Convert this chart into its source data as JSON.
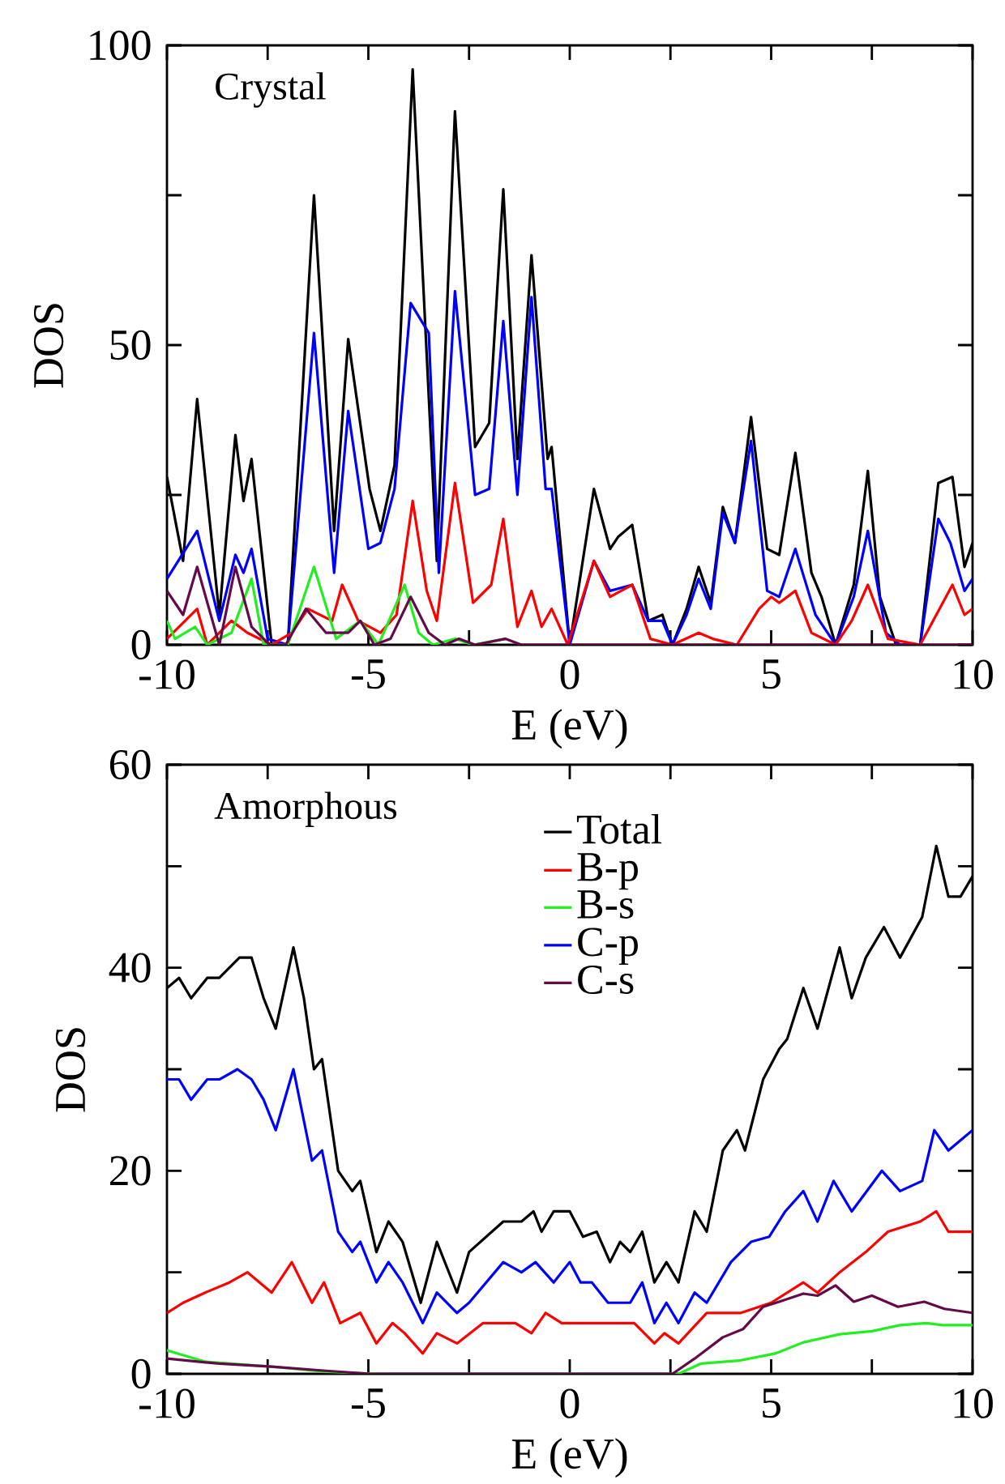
{
  "chart_data": [
    {
      "type": "line",
      "title": "Crystal",
      "xlabel": "E (eV)",
      "ylabel": "DOS",
      "xlim": [
        -10,
        10
      ],
      "ylim": [
        0,
        100
      ],
      "xticks": [
        -10,
        {
          "value": -7.5,
          "label": null
        },
        -5,
        {
          "value": -2.5,
          "label": null
        },
        0,
        {
          "value": 2.5,
          "label": null
        },
        5,
        {
          "value": 7.5,
          "label": null
        },
        10
      ],
      "yticks": [
        0,
        {
          "value": 25,
          "label": null
        },
        50,
        {
          "value": 75,
          "label": null
        },
        100
      ],
      "legend": false,
      "series": [
        {
          "color": "#000000",
          "x": [
            -10,
            -9.6,
            -9.25,
            -8.7,
            -8.3,
            -8.1,
            -7.9,
            -7.4,
            -7.0,
            -6.35,
            -5.85,
            -5.5,
            -4.97,
            -4.7,
            -4.35,
            -3.9,
            -3.3,
            -2.85,
            -2.35,
            -2.0,
            -1.65,
            -1.3,
            -0.95,
            -0.55,
            -0.45,
            0.0,
            0.6,
            1.0,
            1.2,
            1.55,
            1.95,
            2.3,
            2.55,
            2.9,
            3.2,
            3.5,
            3.8,
            4.1,
            4.5,
            4.9,
            5.2,
            5.6,
            6.0,
            6.25,
            6.6,
            7.05,
            7.4,
            7.7,
            8.1,
            8.7,
            9.15,
            9.5,
            9.8,
            10
          ],
          "values": [
            28,
            14,
            41,
            5,
            35,
            24,
            31,
            0,
            0,
            75,
            19,
            51,
            26,
            19,
            30,
            96,
            14,
            89,
            33,
            37,
            76,
            31,
            65,
            31,
            33,
            0,
            26,
            16,
            18,
            20,
            4,
            5,
            0,
            6,
            13,
            7,
            23,
            17,
            38,
            16,
            15,
            32,
            12,
            8,
            0,
            10,
            29,
            8,
            0,
            0,
            27,
            28,
            13,
            17
          ]
        },
        {
          "color": "#0000ff",
          "x": [
            -10,
            -9.25,
            -8.7,
            -8.3,
            -8.1,
            -7.9,
            -7.5,
            -7.0,
            -6.35,
            -5.85,
            -5.5,
            -5.0,
            -4.7,
            -4.35,
            -3.95,
            -3.5,
            -3.25,
            -2.85,
            -2.35,
            -2.0,
            -1.65,
            -1.3,
            -0.95,
            -0.6,
            -0.45,
            0.0,
            0.6,
            1.0,
            1.55,
            1.95,
            2.3,
            2.55,
            2.9,
            3.2,
            3.5,
            3.8,
            4.1,
            4.5,
            4.9,
            5.2,
            5.6,
            6.1,
            6.6,
            7.05,
            7.4,
            7.85,
            8.2,
            8.7,
            9.15,
            9.45,
            9.8,
            10
          ],
          "values": [
            11,
            19,
            4,
            15,
            12,
            16,
            1,
            0,
            52,
            12,
            39,
            16,
            17,
            26,
            57,
            52,
            12,
            59,
            25,
            26,
            54,
            25,
            58,
            26,
            26,
            0,
            14,
            9,
            10,
            4,
            4,
            0,
            5,
            11,
            6,
            22,
            17,
            34,
            9,
            8,
            16,
            5,
            0,
            8,
            19,
            2,
            0,
            0,
            21,
            17,
            9,
            11
          ]
        },
        {
          "color": "#ff0000",
          "x": [
            -10,
            -9.7,
            -9.25,
            -9.0,
            -8.4,
            -8.0,
            -7.4,
            -6.9,
            -6.5,
            -5.9,
            -5.65,
            -5.25,
            -4.7,
            -4.3,
            -3.9,
            -3.55,
            -3.3,
            -2.85,
            -2.4,
            -1.95,
            -1.65,
            -1.3,
            -0.95,
            -0.7,
            -0.45,
            -0.05,
            0.6,
            1.0,
            1.55,
            2.0,
            2.55,
            3.2,
            3.55,
            4.15,
            4.7,
            5.0,
            5.2,
            5.6,
            6.0,
            6.6,
            7.0,
            7.4,
            7.9,
            8.7,
            9.5,
            9.8,
            10
          ],
          "values": [
            1,
            3,
            6,
            0,
            4,
            2,
            0,
            2,
            6,
            4,
            10,
            4,
            2,
            5,
            24,
            9,
            4,
            27,
            7,
            10,
            21,
            3,
            9,
            3,
            6,
            0,
            14,
            8,
            10,
            1,
            0,
            2,
            1,
            0,
            6,
            8,
            7,
            9,
            2,
            0,
            4,
            10,
            1,
            0,
            10,
            5,
            6
          ]
        },
        {
          "color": "#22ee22",
          "x": [
            -10,
            -9.8,
            -9.3,
            -9.0,
            -8.4,
            -7.9,
            -7.6,
            -7.0,
            -6.35,
            -5.8,
            -5.2,
            -4.75,
            -4.1,
            -3.75,
            -3.4,
            -2.85,
            -2.4,
            -1.6
          ],
          "values": [
            4,
            1,
            3,
            0,
            2,
            11,
            0,
            0,
            13,
            1,
            4,
            0,
            10,
            2,
            0,
            1,
            0,
            1
          ]
        },
        {
          "color": "#640a46",
          "x": [
            -10,
            -9.6,
            -9.25,
            -8.7,
            -8.3,
            -7.9,
            -7.45,
            -7.05,
            -6.55,
            -6.05,
            -5.5,
            -5.2,
            -4.85,
            -4.45,
            -3.95,
            -3.5,
            -3.1,
            -2.75,
            -2.35,
            -1.6,
            -1.2,
            10
          ],
          "values": [
            9,
            5,
            13,
            0,
            13,
            3,
            0,
            0,
            6,
            2,
            2,
            4,
            0,
            1,
            8,
            2,
            0,
            1,
            0,
            1,
            0,
            0
          ]
        }
      ]
    },
    {
      "type": "line",
      "title": "Amorphous",
      "xlabel": "E (eV)",
      "ylabel": "DOS",
      "xlim": [
        -10,
        10
      ],
      "ylim": [
        0,
        60
      ],
      "xticks": [
        -10,
        {
          "value": -7.5,
          "label": null
        },
        -5,
        {
          "value": -2.5,
          "label": null
        },
        0,
        {
          "value": 2.5,
          "label": null
        },
        5,
        {
          "value": 7.5,
          "label": null
        },
        10
      ],
      "yticks": [
        0,
        {
          "value": 10,
          "label": null
        },
        20,
        {
          "value": 30,
          "label": null
        },
        40,
        {
          "value": 50,
          "label": null
        },
        60
      ],
      "legend": "top right",
      "series": [
        {
          "name": "Total",
          "color": "#000000",
          "x": [
            -10,
            -9.7,
            -9.4,
            -9.0,
            -8.7,
            -8.2,
            -7.9,
            -7.6,
            -7.3,
            -6.86,
            -6.6,
            -6.35,
            -6.15,
            -5.75,
            -5.4,
            -5.2,
            -4.8,
            -4.5,
            -4.15,
            -3.7,
            -3.3,
            -2.8,
            -2.5,
            -1.65,
            -1.2,
            -0.9,
            -0.7,
            -0.4,
            0.0,
            0.33,
            0.67,
            1.0,
            1.25,
            1.5,
            1.8,
            2.1,
            2.4,
            2.7,
            3.1,
            3.4,
            3.8,
            4.15,
            4.35,
            4.8,
            5.2,
            5.4,
            5.8,
            6.15,
            6.7,
            7.0,
            7.35,
            7.8,
            8.2,
            8.75,
            9.1,
            9.4,
            9.7,
            10
          ],
          "values": [
            38,
            39,
            37,
            39,
            39,
            41,
            41,
            37,
            34,
            42,
            37,
            30,
            31,
            20,
            18,
            19,
            12,
            15,
            13,
            7,
            13,
            8,
            12,
            15,
            15,
            16,
            14,
            16,
            16,
            13.5,
            14,
            11,
            13,
            12,
            14,
            9,
            11,
            9,
            16,
            14,
            22,
            24,
            22,
            29,
            32,
            33,
            38,
            34,
            42,
            37,
            41,
            44,
            41,
            45,
            52,
            47,
            47,
            49
          ]
        },
        {
          "name": "B-p",
          "color": "#ff0000",
          "x": [
            -10,
            -9.6,
            -9.05,
            -8.45,
            -8.0,
            -7.4,
            -6.9,
            -6.4,
            -6.1,
            -5.7,
            -5.2,
            -4.8,
            -4.4,
            -4.1,
            -3.65,
            -3.3,
            -2.8,
            -2.15,
            -1.75,
            -1.35,
            -0.95,
            -0.6,
            -0.2,
            0.27,
            0.67,
            1.2,
            1.6,
            2.1,
            2.35,
            2.7,
            3.4,
            4.25,
            5.0,
            5.8,
            6.15,
            6.7,
            7.35,
            7.9,
            8.7,
            9.1,
            9.4,
            10
          ],
          "values": [
            6,
            7,
            8,
            9,
            10,
            8,
            11,
            7,
            9,
            5,
            6,
            3,
            5,
            4,
            2,
            4,
            3,
            5,
            5,
            5,
            4,
            6,
            5,
            5,
            5,
            5,
            5,
            3,
            4,
            3,
            6,
            6,
            7,
            9,
            8,
            10,
            12,
            14,
            15,
            16,
            14,
            14
          ]
        },
        {
          "name": "B-s",
          "color": "#22ee22",
          "x": [
            -10,
            -9.05,
            -7.4,
            -6.05,
            -4.7,
            2.7,
            3.25,
            4.2,
            5.1,
            5.8,
            6.7,
            7.5,
            8.2,
            8.85,
            9.25,
            10
          ],
          "values": [
            2.3,
            1.2,
            0.7,
            0.2,
            0,
            0,
            1,
            1.3,
            2,
            3.1,
            3.9,
            4.2,
            4.8,
            5,
            4.8,
            4.8
          ]
        },
        {
          "name": "C-p",
          "color": "#0000ff",
          "x": [
            -10,
            -9.7,
            -9.4,
            -9.0,
            -8.7,
            -8.25,
            -7.9,
            -7.6,
            -7.3,
            -6.86,
            -6.4,
            -6.15,
            -5.75,
            -5.4,
            -5.2,
            -4.8,
            -4.5,
            -4.15,
            -3.65,
            -3.3,
            -2.8,
            -2.5,
            -1.65,
            -1.2,
            -0.85,
            -0.4,
            0.0,
            0.27,
            0.55,
            0.95,
            1.5,
            1.8,
            2.1,
            2.4,
            2.7,
            3.1,
            3.4,
            4.0,
            4.5,
            4.95,
            5.35,
            5.8,
            6.15,
            6.55,
            7.0,
            7.75,
            8.2,
            8.75,
            9.05,
            9.4,
            10
          ],
          "values": [
            29,
            29,
            27,
            29,
            29,
            30,
            29,
            27,
            24,
            30,
            21,
            22,
            14,
            12,
            13,
            9,
            11,
            9,
            5,
            8,
            6,
            7,
            11,
            10,
            11,
            9,
            11,
            9,
            9,
            7,
            7,
            9,
            5,
            7,
            5,
            8,
            7,
            11,
            13,
            13.5,
            16,
            18,
            15,
            19,
            16,
            20,
            18,
            19,
            24,
            22,
            24
          ]
        },
        {
          "name": "C-s",
          "color": "#640a46",
          "x": [
            -10,
            -8.7,
            -7.4,
            -6.05,
            -4.95,
            2.55,
            3.1,
            3.8,
            4.3,
            4.8,
            5.2,
            5.8,
            6.15,
            6.6,
            7.05,
            7.5,
            8.15,
            8.8,
            9.3,
            10
          ],
          "values": [
            1.5,
            1,
            0.7,
            0.3,
            0,
            0,
            1.5,
            3.6,
            4.4,
            6.6,
            7.1,
            7.9,
            7.7,
            8.7,
            7.1,
            7.7,
            6.6,
            7.1,
            6.4,
            6
          ]
        }
      ]
    }
  ]
}
